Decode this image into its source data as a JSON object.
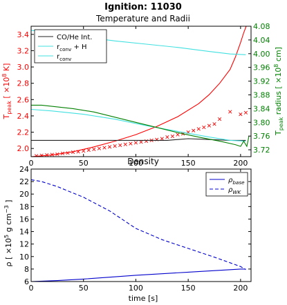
{
  "figure": {
    "title": "Ignition: 11030"
  },
  "chart_data": [
    {
      "type": "line",
      "title": "Temperature and Radii",
      "xlabel": "",
      "xlim": [
        0,
        210
      ],
      "xticks": [
        0,
        50,
        100,
        150,
        200
      ],
      "ylabel_left": "T_peak [ ×10^8 K]",
      "ylim_left": [
        1.9,
        3.5
      ],
      "yticks_left": [
        2.0,
        2.2,
        2.4,
        2.6,
        2.8,
        3.0,
        3.2,
        3.4
      ],
      "ylabel_right": "T_peak radius [ ×10^8 cm]",
      "ylim_right": [
        3.7,
        4.08
      ],
      "yticks_right": [
        3.72,
        3.76,
        3.8,
        3.84,
        3.88,
        3.92,
        3.96,
        4.0,
        4.04,
        4.08
      ],
      "legend_position": "upper-left",
      "legend": [
        {
          "label": "CO/He Int.",
          "color": "#222222"
        },
        {
          "label": "r_conv + H",
          "color": "#40e0e0"
        },
        {
          "label": "r_conv",
          "color": "#40e0e0"
        }
      ],
      "series": [
        {
          "key": "t_peak",
          "axis": "left",
          "color": "#ff0000",
          "style": "line",
          "x": [
            0,
            20,
            40,
            60,
            80,
            100,
            120,
            140,
            160,
            170,
            180,
            190,
            195,
            200,
            203,
            206
          ],
          "y": [
            1.9,
            1.92,
            1.96,
            2.02,
            2.09,
            2.17,
            2.27,
            2.39,
            2.55,
            2.66,
            2.8,
            2.97,
            3.12,
            3.3,
            3.42,
            3.52
          ]
        },
        {
          "key": "t_peak_markers",
          "axis": "left",
          "color": "#ff0000",
          "style": "marker-x",
          "x": [
            5,
            10,
            15,
            20,
            25,
            30,
            35,
            40,
            45,
            50,
            55,
            60,
            65,
            70,
            75,
            80,
            85,
            90,
            95,
            100,
            105,
            110,
            115,
            120,
            125,
            130,
            135,
            140,
            145,
            150,
            155,
            160,
            165,
            170,
            175,
            180,
            190,
            200,
            205
          ],
          "y": [
            1.91,
            1.915,
            1.92,
            1.925,
            1.93,
            1.94,
            1.945,
            1.955,
            1.96,
            1.97,
            1.98,
            1.99,
            2.0,
            2.01,
            2.02,
            2.03,
            2.04,
            2.05,
            2.06,
            2.07,
            2.08,
            2.09,
            2.1,
            2.11,
            2.12,
            2.14,
            2.15,
            2.17,
            2.18,
            2.2,
            2.22,
            2.24,
            2.26,
            2.28,
            2.3,
            2.36,
            2.45,
            2.42,
            2.44
          ]
        },
        {
          "key": "co_he_interface",
          "axis": "left",
          "color": "#222222",
          "style": "line",
          "x": [
            0,
            60,
            90,
            130,
            150,
            170,
            190,
            205
          ],
          "y": [
            2.1,
            2.1,
            2.1,
            2.1,
            2.12,
            2.11,
            2.1,
            2.1
          ]
        },
        {
          "key": "r_conv_plus_h",
          "axis": "left",
          "color": "#40e0e0",
          "style": "line",
          "x": [
            0,
            20,
            50,
            80,
            110,
            140,
            170,
            190,
            205
          ],
          "y": [
            3.45,
            3.42,
            3.37,
            3.32,
            3.28,
            3.24,
            3.19,
            3.16,
            3.15
          ]
        },
        {
          "key": "r_conv",
          "axis": "left",
          "color": "#40e0e0",
          "style": "line",
          "x": [
            0,
            20,
            50,
            80,
            110,
            140,
            170,
            190,
            205
          ],
          "y": [
            2.48,
            2.46,
            2.42,
            2.36,
            2.28,
            2.21,
            2.14,
            2.1,
            2.09
          ]
        },
        {
          "key": "t_peak_radius",
          "axis": "right",
          "color": "#008000",
          "style": "line",
          "x": [
            0,
            10,
            25,
            40,
            60,
            80,
            100,
            120,
            140,
            160,
            180,
            195,
            200,
            203,
            206,
            208
          ],
          "y": [
            3.85,
            3.85,
            3.845,
            3.84,
            3.83,
            3.815,
            3.8,
            3.785,
            3.77,
            3.757,
            3.745,
            3.735,
            3.73,
            3.745,
            3.73,
            3.76
          ]
        }
      ]
    },
    {
      "type": "line",
      "title": "Density",
      "xlabel": "time [s]",
      "xlim": [
        0,
        210
      ],
      "xticks": [
        0,
        50,
        100,
        150,
        200
      ],
      "ylabel": "ρ [ ×10^5 g cm^-3 ]",
      "ylim": [
        6,
        24
      ],
      "yticks": [
        6,
        8,
        10,
        12,
        14,
        16,
        18,
        20,
        22,
        24
      ],
      "legend_position": "upper-right",
      "legend": [
        {
          "label": "ρ_base",
          "color": "#0000cc",
          "style": "solid"
        },
        {
          "label": "ρ_WK",
          "color": "#0000cc",
          "style": "dashed"
        }
      ],
      "series": [
        {
          "key": "rho_base",
          "color": "#0000cc",
          "style": "solid",
          "x": [
            0,
            25,
            50,
            75,
            100,
            125,
            150,
            175,
            200,
            205
          ],
          "y": [
            6.0,
            6.15,
            6.4,
            6.7,
            7.0,
            7.25,
            7.5,
            7.75,
            8.0,
            8.0
          ]
        },
        {
          "key": "rho_wk",
          "color": "#0000cc",
          "style": "dashed",
          "x": [
            0,
            10,
            25,
            50,
            75,
            100,
            125,
            150,
            175,
            190,
            200,
            205
          ],
          "y": [
            22.3,
            22.0,
            21.2,
            19.5,
            17.3,
            14.5,
            12.7,
            11.3,
            9.9,
            9.0,
            8.4,
            7.9
          ]
        }
      ]
    }
  ]
}
